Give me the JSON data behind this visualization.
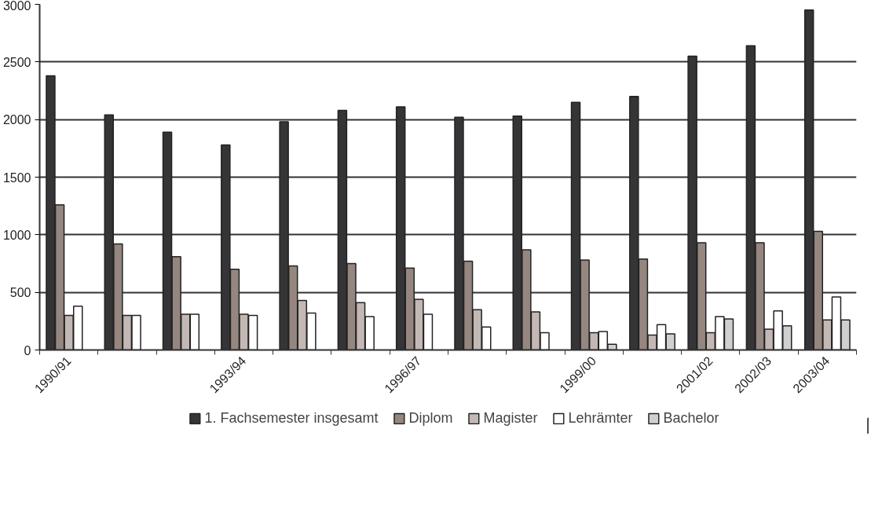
{
  "chart_data": {
    "type": "bar",
    "categories": [
      "1990/91",
      null,
      null,
      "1993/94",
      null,
      null,
      "1996/97",
      null,
      null,
      "1999/00",
      null,
      "2001/02",
      "2002/03",
      "2003/04"
    ],
    "series": [
      {
        "name": "1. Fachsemester insgesamt",
        "color": "#353437",
        "values": [
          2380,
          2040,
          1890,
          1780,
          1980,
          2080,
          2110,
          2020,
          2030,
          2150,
          2200,
          2550,
          2640,
          2950
        ]
      },
      {
        "name": "Diplom",
        "color": "#958680",
        "values": [
          1260,
          920,
          810,
          700,
          730,
          750,
          710,
          770,
          870,
          780,
          790,
          930,
          930,
          1030
        ]
      },
      {
        "name": "Magister",
        "color": "#c4b8b4",
        "values": [
          300,
          300,
          310,
          310,
          430,
          410,
          440,
          350,
          330,
          150,
          130,
          150,
          180,
          260
        ]
      },
      {
        "name": "Lehrämter",
        "color": "#ffffff",
        "values": [
          380,
          300,
          310,
          300,
          320,
          290,
          310,
          200,
          150,
          160,
          220,
          290,
          340,
          460
        ]
      },
      {
        "name": "Bachelor",
        "color": "#d0d0d0",
        "values": [
          null,
          null,
          null,
          null,
          null,
          null,
          null,
          null,
          null,
          50,
          140,
          270,
          210,
          260
        ]
      }
    ],
    "ylim": [
      0,
      3000
    ],
    "yticks": [
      0,
      500,
      1000,
      1500,
      2000,
      2500,
      3000
    ],
    "grid": "y",
    "legend": "bottom"
  }
}
